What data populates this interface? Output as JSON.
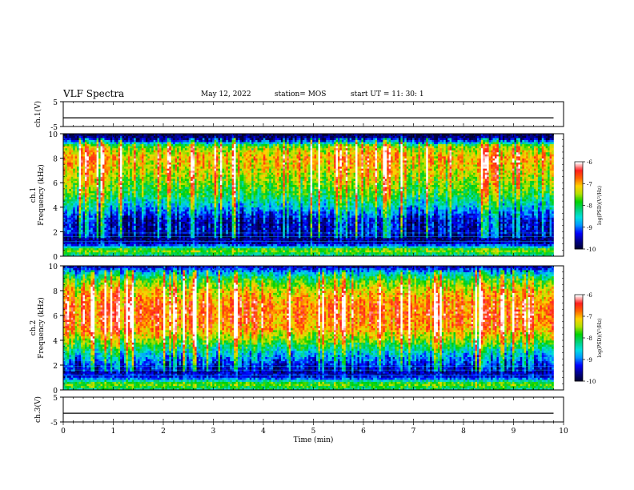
{
  "header": {
    "title": "VLF Spectra",
    "date": "May 12, 2022",
    "station": "station= MOS",
    "start": "start  UT =   11: 30: 1"
  },
  "colors": {
    "ramp": [
      "#000032",
      "#00008c",
      "#0000ff",
      "#0096ff",
      "#00e0e0",
      "#00d27a",
      "#00d200",
      "#b4e100",
      "#ffd200",
      "#ff6400",
      "#ff1e1e",
      "#ffffff"
    ]
  },
  "chart_data": [
    {
      "type": "line",
      "panel": "ch1-waveform",
      "ylabel": "ch.1(V)",
      "ylim": [
        -5,
        5
      ],
      "yticks": [
        "5",
        "-5"
      ],
      "series": [
        {
          "x": [
            0,
            9.8
          ],
          "values": [
            -1.5,
            -1.5
          ]
        }
      ]
    },
    {
      "type": "heatmap",
      "panel": "ch1-spectrogram",
      "ylabel": "ch.1 Frequency (kHz)",
      "ylim": [
        0,
        10
      ],
      "yticks": [
        "0",
        "2",
        "4",
        "6",
        "8",
        "10"
      ],
      "xlim": [
        0,
        10
      ],
      "colorbar": {
        "label": "log(PSD)(V²/Hz)",
        "range": [
          -10,
          -6
        ],
        "ticks": [
          "-6",
          "-7",
          "-8",
          "-9",
          "-10"
        ]
      },
      "freq_khz": [
        0,
        0.5,
        1,
        1.5,
        2,
        3,
        4,
        5,
        6,
        7,
        8,
        9,
        9.5,
        10
      ],
      "log_psd": [
        -8.5,
        -7.5,
        -9.5,
        -9.8,
        -9.5,
        -9.5,
        -8.7,
        -8.0,
        -7.6,
        -7.3,
        -7.0,
        -7.6,
        -9.5,
        -10
      ]
    },
    {
      "type": "heatmap",
      "panel": "ch2-spectrogram",
      "ylabel": "ch.2 Frequency (kHz)",
      "ylim": [
        0,
        10
      ],
      "yticks": [
        "0",
        "2",
        "4",
        "6",
        "8",
        "10"
      ],
      "xlim": [
        0,
        10
      ],
      "colorbar": {
        "label": "log(PSD)(V²/Hz)",
        "range": [
          -10,
          -6
        ],
        "ticks": [
          "-6",
          "-7",
          "-8",
          "-9",
          "-10"
        ]
      },
      "freq_khz": [
        0,
        0.5,
        1,
        1.5,
        2,
        3,
        4,
        5,
        6,
        7,
        8,
        9,
        9.5,
        10
      ],
      "log_psd": [
        -8.3,
        -7.6,
        -9.3,
        -9.6,
        -9.3,
        -8.6,
        -7.6,
        -6.9,
        -6.7,
        -6.8,
        -7.2,
        -8.0,
        -8.8,
        -9.6
      ]
    },
    {
      "type": "line",
      "panel": "ch3-waveform",
      "ylabel": "ch.3(V)",
      "ylim": [
        -5,
        5
      ],
      "yticks": [
        "5",
        "-5"
      ],
      "xlabel": "Time  (min)",
      "xlim": [
        0,
        10
      ],
      "xticks": [
        "0",
        "1",
        "2",
        "3",
        "4",
        "5",
        "6",
        "7",
        "8",
        "9",
        "10"
      ],
      "series": [
        {
          "x": [
            0,
            9.8
          ],
          "values": [
            -1.5,
            -1.5
          ]
        }
      ]
    }
  ]
}
